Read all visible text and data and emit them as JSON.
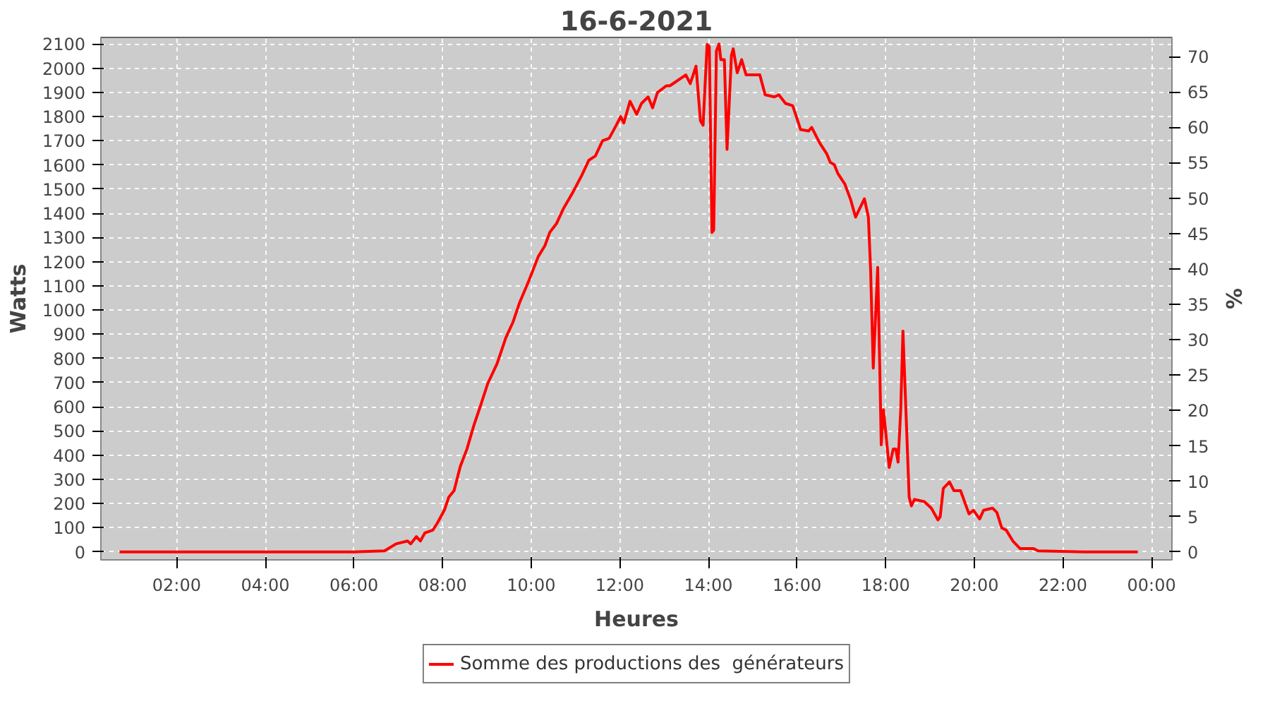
{
  "chart_data": {
    "type": "line",
    "title": "16-6-2021",
    "xlabel": "Heures",
    "ylabel": "Watts",
    "y2label": "%",
    "xlim": [
      0.29,
      24.46
    ],
    "ylim": [
      -33,
      2127
    ],
    "y2lim": [
      -1.1,
      72.7
    ],
    "xticks": [
      {
        "value": 2,
        "label": "02:00"
      },
      {
        "value": 4,
        "label": "04:00"
      },
      {
        "value": 6,
        "label": "06:00"
      },
      {
        "value": 8,
        "label": "08:00"
      },
      {
        "value": 10,
        "label": "10:00"
      },
      {
        "value": 12,
        "label": "12:00"
      },
      {
        "value": 14,
        "label": "14:00"
      },
      {
        "value": 16,
        "label": "16:00"
      },
      {
        "value": 18,
        "label": "18:00"
      },
      {
        "value": 20,
        "label": "20:00"
      },
      {
        "value": 22,
        "label": "22:00"
      },
      {
        "value": 24,
        "label": "00:00"
      }
    ],
    "yticks": [
      0,
      100,
      200,
      300,
      400,
      500,
      600,
      700,
      800,
      900,
      1000,
      1100,
      1200,
      1300,
      1400,
      1500,
      1600,
      1700,
      1800,
      1900,
      2000,
      2100
    ],
    "y2ticks": [
      0,
      5,
      10,
      15,
      20,
      25,
      30,
      35,
      40,
      45,
      50,
      55,
      60,
      65,
      70
    ],
    "grid": true,
    "legend": "bottom",
    "line_style": "solid",
    "series": [
      {
        "name": "Somme des productions des  générateurs",
        "color": "#ff0000",
        "x": [
          0.71,
          2.0,
          4.0,
          5.0,
          6.0,
          6.69,
          6.95,
          7.21,
          7.28,
          7.41,
          7.5,
          7.6,
          7.78,
          7.88,
          8.04,
          8.14,
          8.26,
          8.4,
          8.55,
          8.71,
          8.86,
          9.02,
          9.23,
          9.43,
          9.59,
          9.74,
          9.95,
          10.16,
          10.31,
          10.42,
          10.57,
          10.73,
          10.93,
          11.14,
          11.3,
          11.45,
          11.61,
          11.76,
          11.92,
          12.02,
          12.09,
          12.23,
          12.38,
          12.49,
          12.64,
          12.74,
          12.85,
          13.05,
          13.13,
          13.49,
          13.59,
          13.72,
          13.82,
          13.88,
          13.97,
          14.02,
          14.08,
          14.12,
          14.18,
          14.24,
          14.28,
          14.36,
          14.42,
          14.46,
          14.52,
          14.56,
          14.65,
          14.75,
          14.85,
          15.16,
          15.28,
          15.49,
          15.59,
          15.74,
          15.9,
          16.0,
          16.08,
          16.26,
          16.33,
          16.51,
          16.67,
          16.75,
          16.84,
          16.92,
          17.08,
          17.21,
          17.32,
          17.52,
          17.61,
          17.66,
          17.72,
          17.82,
          17.87,
          17.9,
          17.95,
          18.0,
          18.08,
          18.17,
          18.23,
          18.28,
          18.34,
          18.39,
          18.46,
          18.53,
          18.58,
          18.65,
          18.87,
          19.03,
          19.18,
          19.23,
          19.3,
          19.44,
          19.54,
          19.69,
          19.88,
          19.98,
          20.12,
          20.21,
          20.41,
          20.51,
          20.62,
          20.72,
          20.87,
          21.03,
          21.33,
          21.44,
          22.5,
          23.69
        ],
        "values": [
          0,
          0,
          0,
          0,
          0,
          4,
          33,
          45,
          33,
          63,
          45,
          78,
          90,
          118,
          172,
          226,
          253,
          353,
          425,
          525,
          606,
          696,
          778,
          886,
          950,
          1031,
          1122,
          1221,
          1266,
          1321,
          1357,
          1420,
          1483,
          1556,
          1619,
          1637,
          1700,
          1710,
          1764,
          1800,
          1773,
          1863,
          1809,
          1854,
          1881,
          1836,
          1899,
          1927,
          1927,
          1972,
          1936,
          2008,
          1782,
          1764,
          2098,
          2089,
          1321,
          1330,
          2071,
          2100,
          2035,
          2035,
          1664,
          1818,
          2053,
          2080,
          1981,
          2035,
          1972,
          1972,
          1890,
          1881,
          1890,
          1854,
          1845,
          1791,
          1746,
          1740,
          1755,
          1691,
          1646,
          1610,
          1601,
          1565,
          1520,
          1456,
          1384,
          1460,
          1384,
          1167,
          760,
          1176,
          733,
          443,
          588,
          497,
          349,
          425,
          425,
          371,
          588,
          913,
          570,
          226,
          190,
          217,
          208,
          181,
          132,
          145,
          262,
          289,
          253,
          253,
          157,
          172,
          136,
          172,
          181,
          163,
          99,
          90,
          45,
          14,
          14,
          4,
          0,
          0
        ]
      }
    ]
  }
}
